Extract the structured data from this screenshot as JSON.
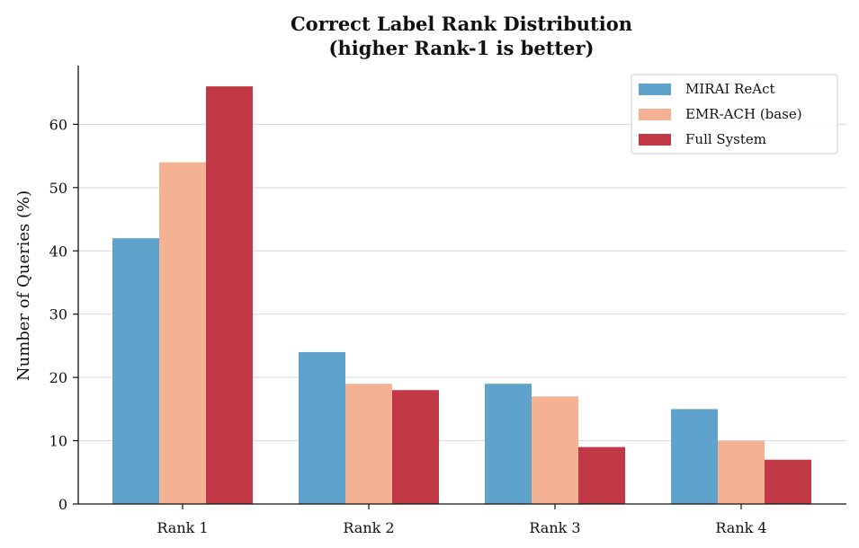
{
  "chart_data": {
    "type": "bar",
    "title_line1": "Correct Label Rank Distribution",
    "title_line2": "(higher Rank-1 is better)",
    "xlabel": "",
    "ylabel": "Number of Queries (%)",
    "categories": [
      "Rank 1",
      "Rank 2",
      "Rank 3",
      "Rank 4"
    ],
    "series": [
      {
        "name": "MIRAI ReAct",
        "values": [
          42,
          24,
          19,
          15
        ],
        "color": "#5fa2cc"
      },
      {
        "name": "EMR-ACH (base)",
        "values": [
          54,
          19,
          17,
          10
        ],
        "color": "#f4b194"
      },
      {
        "name": "Full System",
        "values": [
          66,
          18,
          9,
          7
        ],
        "color": "#c13947"
      }
    ],
    "ylim": [
      0,
      69
    ],
    "yticks": [
      0,
      10,
      20,
      30,
      40,
      50,
      60
    ],
    "grid": "horizontal",
    "legend_position": "top-right"
  }
}
